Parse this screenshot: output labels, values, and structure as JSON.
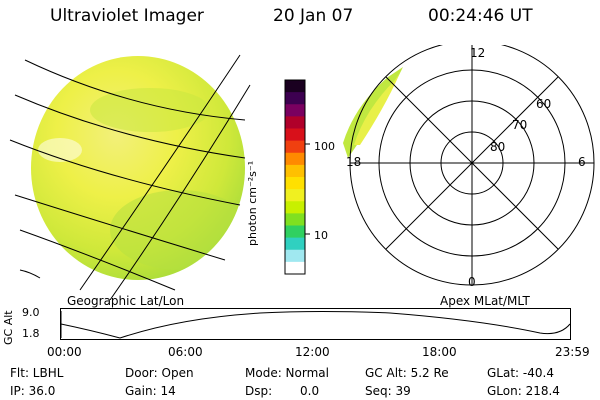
{
  "header": {
    "instrument": "Ultraviolet Imager",
    "date": "20 Jan 07",
    "time": "00:24:46 UT"
  },
  "colorbar": {
    "unit": "photon cm⁻²s⁻¹",
    "ticks": [
      "100",
      "10"
    ],
    "colors": [
      "#1a0020",
      "#3d0050",
      "#7a0060",
      "#b0002a",
      "#d8101a",
      "#f04010",
      "#ff8a00",
      "#ffc000",
      "#ffe000",
      "#f0f020",
      "#c8f000",
      "#80e020",
      "#30d060",
      "#30d0c0",
      "#a0e8f0",
      "#ffffff"
    ]
  },
  "left_panel": {
    "label": "Geographic Lat/Lon"
  },
  "polar_plot": {
    "label": "Apex MLat/MLT",
    "mlt_labels": [
      "12",
      "18",
      "6",
      "0"
    ],
    "lat_labels": [
      "60",
      "70",
      "80"
    ]
  },
  "timeline": {
    "ylabel": "GC Alt",
    "yticks": [
      "9.0",
      "1.8"
    ],
    "xticks": [
      "00:00",
      "06:00",
      "12:00",
      "18:00",
      "23:59"
    ]
  },
  "status": {
    "row1": {
      "flt": "Flt: LBHL",
      "door": "Door: Open",
      "mode": "Mode: Normal",
      "gcalt": "GC Alt: 5.2 Re",
      "glat": "GLat: -40.4"
    },
    "row2": {
      "ip": "IP: 36.0",
      "gain": "Gain: 14",
      "dsp_label": "Dsp:",
      "dsp_value": "0.0",
      "seq": "Seq: 39",
      "glon": "GLon: 218.4"
    }
  }
}
